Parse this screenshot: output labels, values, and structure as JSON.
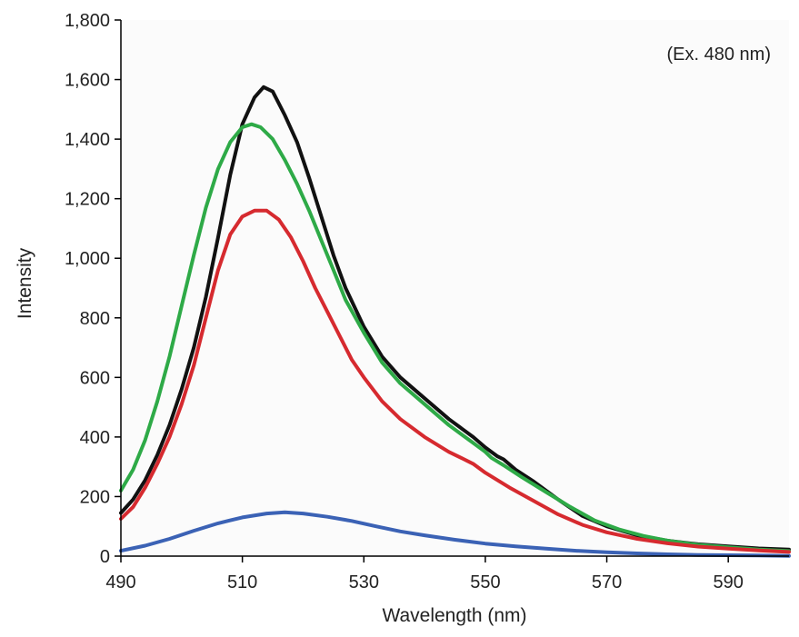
{
  "chart_data": {
    "type": "line",
    "title": "",
    "xlabel": "Wavelength (nm)",
    "ylabel": "Intensity",
    "annotation": "(Ex. 480 nm)",
    "xlim": [
      490,
      600
    ],
    "ylim": [
      0,
      1800
    ],
    "x_ticks": [
      490,
      510,
      530,
      550,
      570,
      590
    ],
    "x_tick_labels": [
      "490",
      "510",
      "530",
      "550",
      "570",
      "590"
    ],
    "y_ticks": [
      0,
      200,
      400,
      600,
      800,
      1000,
      1200,
      1400,
      1600,
      1800
    ],
    "y_tick_labels": [
      "0",
      "200",
      "400",
      "600",
      "800",
      "1,000",
      "1,200",
      "1,400",
      "1,600",
      "1,800"
    ],
    "grid": false,
    "legend": "none",
    "series": [
      {
        "color": "#111111",
        "points": [
          [
            490,
            145
          ],
          [
            492,
            190
          ],
          [
            494,
            255
          ],
          [
            496,
            340
          ],
          [
            498,
            440
          ],
          [
            500,
            560
          ],
          [
            502,
            700
          ],
          [
            504,
            870
          ],
          [
            506,
            1070
          ],
          [
            508,
            1280
          ],
          [
            510,
            1450
          ],
          [
            512,
            1540
          ],
          [
            513.5,
            1575
          ],
          [
            515,
            1560
          ],
          [
            517,
            1480
          ],
          [
            519,
            1390
          ],
          [
            521,
            1270
          ],
          [
            523,
            1140
          ],
          [
            525,
            1010
          ],
          [
            527,
            900
          ],
          [
            530,
            770
          ],
          [
            533,
            670
          ],
          [
            536,
            600
          ],
          [
            540,
            530
          ],
          [
            544,
            460
          ],
          [
            548,
            400
          ],
          [
            550,
            365
          ],
          [
            552,
            335
          ],
          [
            553,
            325
          ],
          [
            555,
            290
          ],
          [
            558,
            250
          ],
          [
            562,
            190
          ],
          [
            566,
            135
          ],
          [
            570,
            100
          ],
          [
            575,
            70
          ],
          [
            580,
            52
          ],
          [
            585,
            40
          ],
          [
            590,
            33
          ],
          [
            595,
            26
          ],
          [
            600,
            22
          ]
        ]
      },
      {
        "color": "#2eaa47",
        "points": [
          [
            490,
            220
          ],
          [
            492,
            290
          ],
          [
            494,
            390
          ],
          [
            496,
            520
          ],
          [
            498,
            670
          ],
          [
            500,
            840
          ],
          [
            502,
            1010
          ],
          [
            504,
            1170
          ],
          [
            506,
            1300
          ],
          [
            508,
            1390
          ],
          [
            510,
            1440
          ],
          [
            511.5,
            1450
          ],
          [
            513,
            1440
          ],
          [
            515,
            1400
          ],
          [
            517,
            1330
          ],
          [
            519,
            1250
          ],
          [
            521,
            1160
          ],
          [
            523,
            1060
          ],
          [
            525,
            960
          ],
          [
            527,
            860
          ],
          [
            530,
            750
          ],
          [
            533,
            650
          ],
          [
            536,
            580
          ],
          [
            540,
            510
          ],
          [
            544,
            440
          ],
          [
            548,
            380
          ],
          [
            550,
            350
          ],
          [
            551,
            330
          ],
          [
            553,
            305
          ],
          [
            556,
            265
          ],
          [
            560,
            215
          ],
          [
            564,
            165
          ],
          [
            568,
            120
          ],
          [
            572,
            90
          ],
          [
            576,
            68
          ],
          [
            580,
            52
          ],
          [
            585,
            38
          ],
          [
            590,
            30
          ],
          [
            595,
            22
          ],
          [
            600,
            17
          ]
        ]
      },
      {
        "color": "#d62a2f",
        "points": [
          [
            490,
            125
          ],
          [
            492,
            165
          ],
          [
            494,
            230
          ],
          [
            496,
            310
          ],
          [
            498,
            400
          ],
          [
            500,
            510
          ],
          [
            502,
            640
          ],
          [
            504,
            800
          ],
          [
            506,
            960
          ],
          [
            508,
            1080
          ],
          [
            510,
            1140
          ],
          [
            512,
            1160
          ],
          [
            514,
            1160
          ],
          [
            516,
            1130
          ],
          [
            518,
            1070
          ],
          [
            520,
            990
          ],
          [
            522,
            900
          ],
          [
            524,
            820
          ],
          [
            526,
            740
          ],
          [
            528,
            660
          ],
          [
            530,
            600
          ],
          [
            533,
            520
          ],
          [
            536,
            460
          ],
          [
            540,
            400
          ],
          [
            544,
            350
          ],
          [
            546,
            330
          ],
          [
            548,
            310
          ],
          [
            550,
            280
          ],
          [
            554,
            230
          ],
          [
            558,
            185
          ],
          [
            562,
            140
          ],
          [
            566,
            105
          ],
          [
            570,
            80
          ],
          [
            575,
            58
          ],
          [
            580,
            43
          ],
          [
            585,
            32
          ],
          [
            590,
            25
          ],
          [
            595,
            19
          ],
          [
            600,
            14
          ]
        ]
      },
      {
        "color": "#3b62b5",
        "points": [
          [
            490,
            18
          ],
          [
            494,
            35
          ],
          [
            498,
            58
          ],
          [
            502,
            85
          ],
          [
            506,
            110
          ],
          [
            510,
            130
          ],
          [
            514,
            143
          ],
          [
            517,
            147
          ],
          [
            520,
            143
          ],
          [
            524,
            132
          ],
          [
            528,
            118
          ],
          [
            532,
            100
          ],
          [
            536,
            83
          ],
          [
            540,
            70
          ],
          [
            545,
            55
          ],
          [
            550,
            42
          ],
          [
            555,
            33
          ],
          [
            560,
            25
          ],
          [
            565,
            18
          ],
          [
            570,
            13
          ],
          [
            575,
            9
          ],
          [
            580,
            6
          ],
          [
            585,
            4
          ],
          [
            590,
            3
          ],
          [
            595,
            2
          ],
          [
            600,
            1
          ]
        ]
      }
    ]
  }
}
